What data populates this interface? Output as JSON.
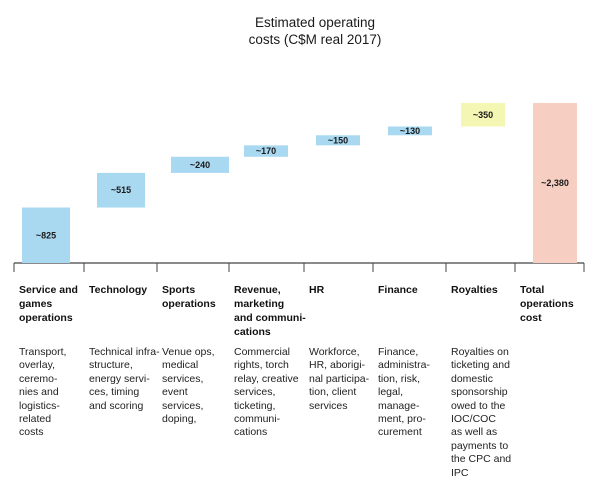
{
  "chart_data": {
    "type": "waterfall",
    "title": "Estimated operating\ncosts (C$M real 2017)",
    "categories": [
      "Service and\ngames\noperations",
      "Technology",
      "Sports\noperations",
      "Revenue,\nmarketing\nand communi-\ncations",
      "HR",
      "Finance",
      "Royalties",
      "Total\noperations\ncost"
    ],
    "values": [
      825,
      515,
      240,
      170,
      150,
      130,
      350,
      2380
    ],
    "value_labels": [
      "~825",
      "~515",
      "~240",
      "~170",
      "~150",
      "~130",
      "~350",
      "~2,380"
    ],
    "descriptions": [
      "Transport,\noverlay,\nceremo-\nnies and\nlogistics-\nrelated\ncosts",
      "Technical infra-\nstructure,\nenergy servi-\nces, timing\nand scoring",
      "Venue ops,\nmedical\nservices,\nevent\nservices,\ndoping,",
      "Commercial\nrights, torch\nrelay, creative\nservices,\nticketing,\ncommuni-\ncations",
      "Workforce,\nHR, aborigi-\nnal participa-\ntion, client\nservices",
      "Finance,\nadministra-\ntion, risk,\nlegal,\nmanage-\nment, pro-\ncurement",
      "Royalties on\nticketing and\ndomestic\nsponsorship\nowed to the\nIOC/COC\nas well as\npayments to\nthe CPC and\nIPC",
      ""
    ],
    "bar_colors": [
      "#a9d8f1",
      "#a9d8f1",
      "#a9d8f1",
      "#a9d8f1",
      "#a9d8f1",
      "#a9d8f1",
      "#f4f6b4",
      "#f6cfc2"
    ],
    "ylim": [
      0,
      2380
    ],
    "grid": false
  }
}
